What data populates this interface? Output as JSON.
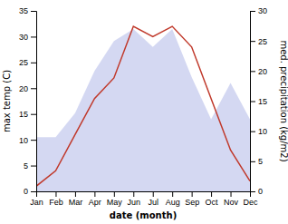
{
  "chart_data": {
    "type": "line",
    "categories": [
      "Jan",
      "Feb",
      "Mar",
      "Apr",
      "May",
      "Jun",
      "Jul",
      "Aug",
      "Sep",
      "Oct",
      "Nov",
      "Dec"
    ],
    "series": [
      {
        "type": "area",
        "axis": "y2",
        "color": "#b0b8e8",
        "values": [
          9,
          9,
          13,
          20,
          25,
          27,
          24,
          27,
          19,
          12,
          18,
          12
        ]
      },
      {
        "type": "line",
        "color": "#c0392b",
        "values": [
          1,
          4,
          11,
          18,
          22,
          32,
          30,
          32,
          28,
          18,
          8,
          2
        ]
      }
    ],
    "xlabel": "date (month)",
    "ylabel": "max temp (C)",
    "y2label": "med. precipitation (kg/m2)",
    "ylim": [
      0,
      35
    ],
    "yticks": [
      0,
      5,
      10,
      15,
      20,
      25,
      30,
      35
    ],
    "y2lim": [
      0,
      30
    ],
    "y2ticks": [
      0,
      5,
      10,
      15,
      20,
      25,
      30
    ]
  }
}
